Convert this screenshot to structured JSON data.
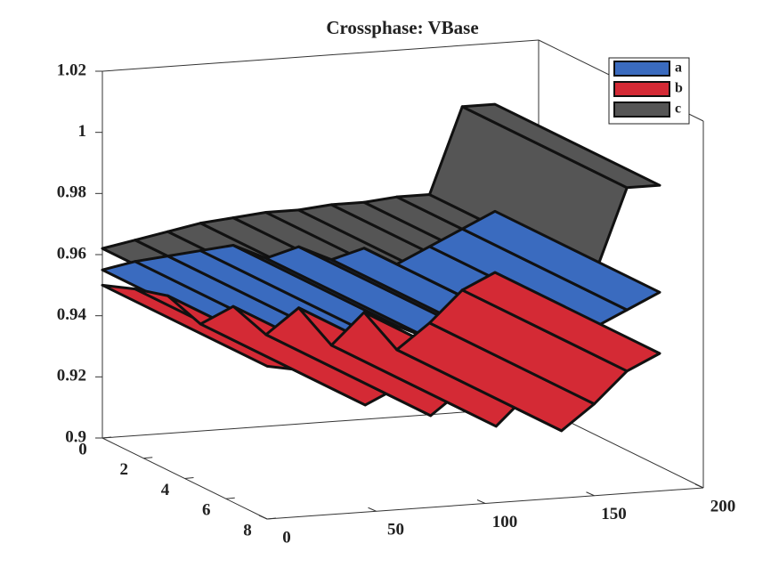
{
  "chart_data": {
    "type": "surface3d",
    "title": "Crossphase: VBase",
    "x": [
      0,
      15,
      30,
      45,
      60,
      75,
      90,
      105,
      120,
      135,
      150,
      165,
      180
    ],
    "series": [
      {
        "name": "c",
        "color": "#555555",
        "values": [
          0.962,
          0.964,
          0.966,
          0.968,
          0.969,
          0.97,
          0.97,
          0.971,
          0.971,
          0.972,
          0.972,
          1.0,
          1.0
        ]
      },
      {
        "name": "a",
        "color": "#3a6bbf",
        "values": [
          0.955,
          0.957,
          0.958,
          0.959,
          0.96,
          0.955,
          0.958,
          0.953,
          0.956,
          0.95,
          0.955,
          0.96,
          0.965
        ]
      },
      {
        "name": "b",
        "color": "#d42a35",
        "values": [
          0.95,
          0.948,
          0.945,
          0.935,
          0.94,
          0.93,
          0.938,
          0.925,
          0.935,
          0.922,
          0.93,
          0.94,
          0.945
        ]
      }
    ],
    "xlim": [
      0,
      200
    ],
    "xticks": [
      0,
      50,
      100,
      150,
      200
    ],
    "ylim": [
      0,
      8
    ],
    "yticks": [
      0,
      2,
      4,
      6,
      8
    ],
    "zlim": [
      0.9,
      1.02
    ],
    "zticks": [
      0.9,
      0.92,
      0.94,
      0.96,
      0.98,
      1,
      1.02
    ],
    "legend": "top-right"
  }
}
